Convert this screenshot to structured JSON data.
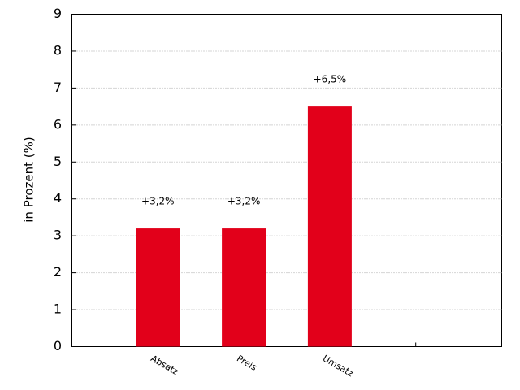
{
  "chart_data": {
    "type": "bar",
    "y_label": "in Prozent (%)",
    "categories": [
      "Absatz",
      "Preis",
      "Umsatz",
      null
    ],
    "values": [
      3.2,
      3.2,
      6.5,
      null
    ],
    "value_labels": [
      "+3,2%",
      "+3,2%",
      "+6,5%",
      null
    ],
    "color": "#e2001a",
    "ylim": [
      0,
      9
    ],
    "yticks": [
      0,
      1,
      2,
      3,
      4,
      5,
      6,
      7,
      8,
      9
    ],
    "grid": true
  }
}
